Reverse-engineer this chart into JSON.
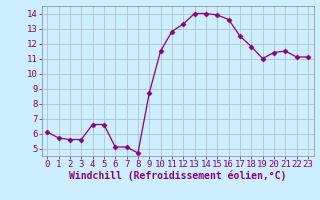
{
  "x": [
    0,
    1,
    2,
    3,
    4,
    5,
    6,
    7,
    8,
    9,
    10,
    11,
    12,
    13,
    14,
    15,
    16,
    17,
    18,
    19,
    20,
    21,
    22,
    23
  ],
  "y": [
    6.1,
    5.7,
    5.6,
    5.6,
    6.6,
    6.6,
    5.1,
    5.1,
    4.7,
    8.7,
    11.5,
    12.8,
    13.3,
    14.0,
    14.0,
    13.9,
    13.6,
    12.5,
    11.8,
    11.0,
    11.4,
    11.5,
    11.1,
    11.1
  ],
  "line_color": "#880088",
  "marker": "D",
  "marker_size": 2.5,
  "bg_color": "#cceeff",
  "grid_color": "#aabbcc",
  "xlabel": "Windchill (Refroidissement éolien,°C)",
  "xlabel_fontsize": 7,
  "tick_fontsize": 6.5,
  "ylim": [
    4.5,
    14.5
  ],
  "xlim": [
    -0.5,
    23.5
  ],
  "yticks": [
    5,
    6,
    7,
    8,
    9,
    10,
    11,
    12,
    13,
    14
  ],
  "xticks": [
    0,
    1,
    2,
    3,
    4,
    5,
    6,
    7,
    8,
    9,
    10,
    11,
    12,
    13,
    14,
    15,
    16,
    17,
    18,
    19,
    20,
    21,
    22,
    23
  ]
}
